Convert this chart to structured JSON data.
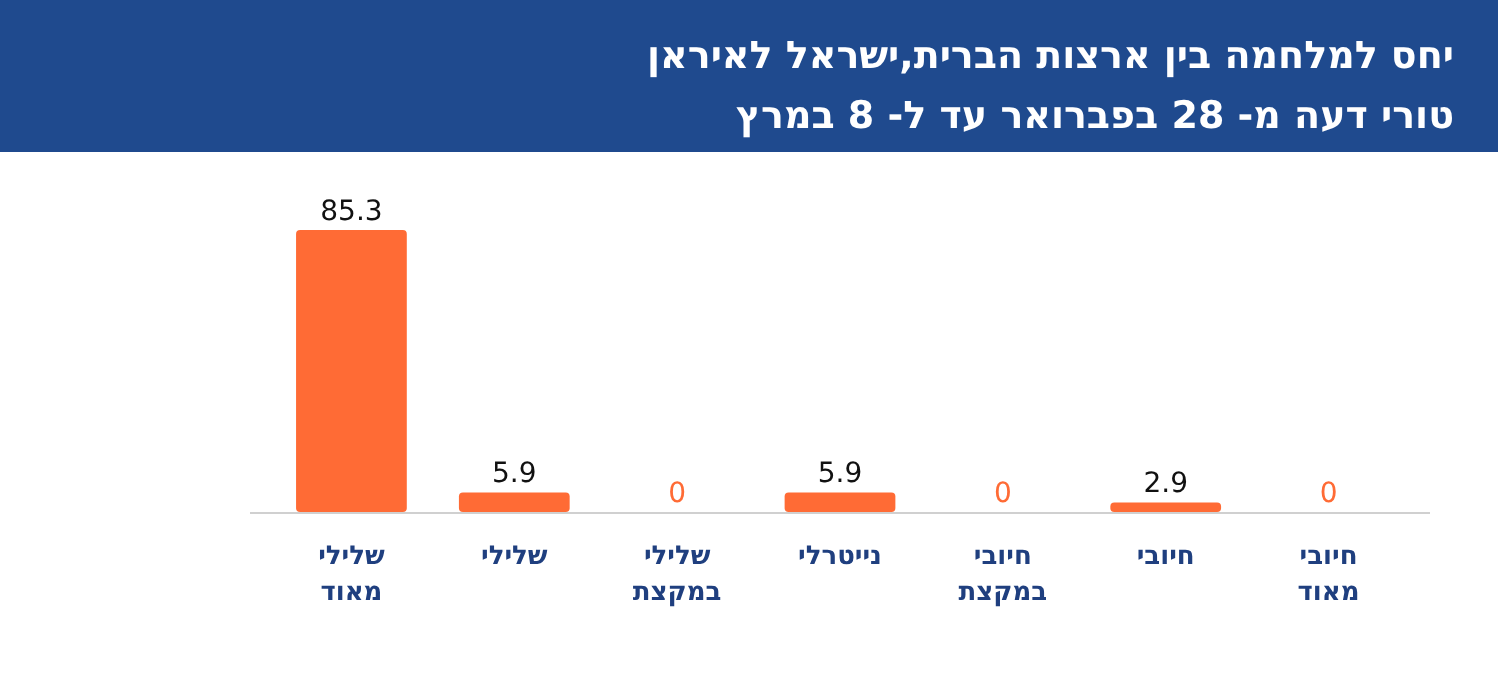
{
  "chart_data": {
    "type": "bar",
    "title": "יחס למלחמה בין ארצות הברית,ישראל לאיראן",
    "subtitle": "טורי דעה מ- 28 בפברואר עד ל- 8 במרץ",
    "categories": [
      "שלילי\nמאוד",
      "שלילי",
      "שלילי\nבמקצת",
      "נייטרלי",
      "חיובי\nבמקצת",
      "חיובי",
      "חיובי\nמאוד"
    ],
    "values": [
      85.3,
      5.9,
      0,
      5.9,
      0,
      2.9,
      0
    ],
    "color": "#ff6b35",
    "data_labels": true
  }
}
